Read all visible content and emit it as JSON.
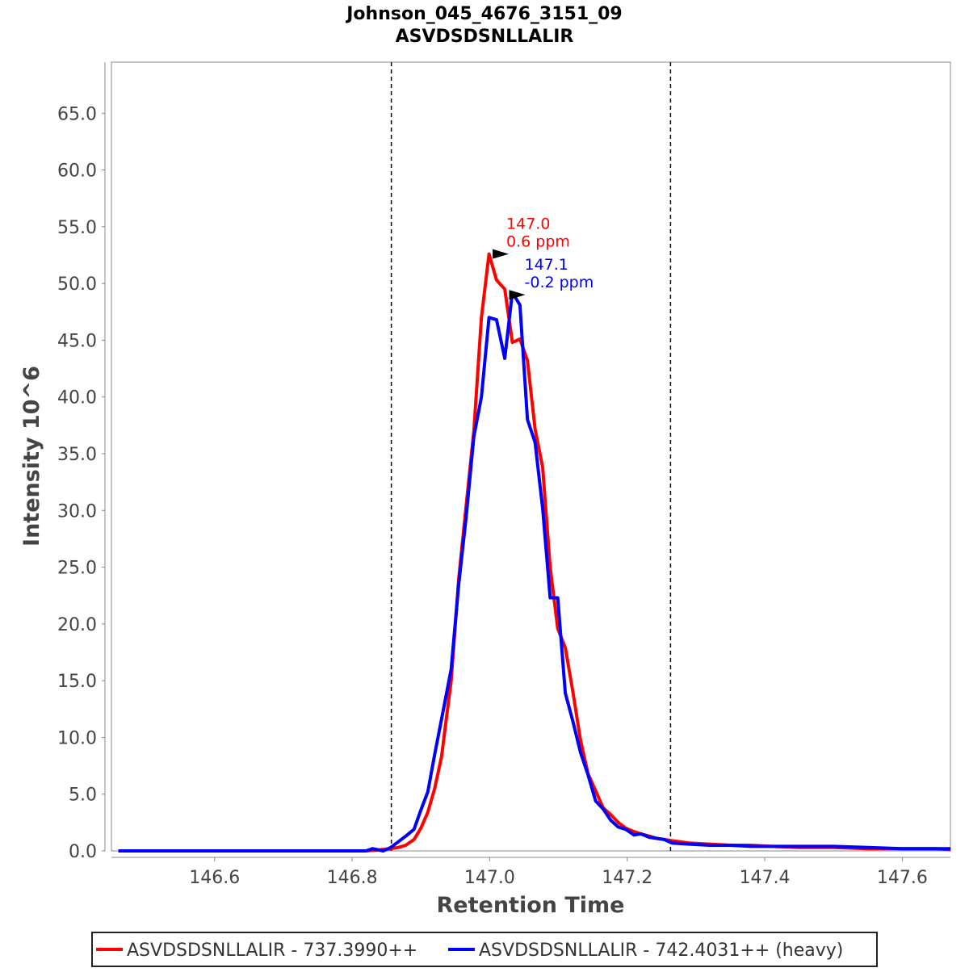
{
  "chart_data": {
    "type": "line",
    "title": "Johnson_045_4676_3151_09",
    "subtitle": "ASVDSDSNLLALIR",
    "xlabel": "Retention Time",
    "ylabel": "Intensity 10^6",
    "xlim": [
      146.45,
      147.67
    ],
    "ylim": [
      0,
      69.5
    ],
    "x_ticks": [
      "146.6",
      "146.8",
      "147.0",
      "147.2",
      "147.4",
      "147.6"
    ],
    "x_tick_values": [
      146.6,
      146.8,
      147.0,
      147.2,
      147.4,
      147.6
    ],
    "y_ticks": [
      "0.0",
      "5.0",
      "10.0",
      "15.0",
      "20.0",
      "25.0",
      "30.0",
      "35.0",
      "40.0",
      "45.0",
      "50.0",
      "55.0",
      "60.0",
      "65.0"
    ],
    "y_tick_values": [
      0,
      5,
      10,
      15,
      20,
      25,
      30,
      35,
      40,
      45,
      50,
      55,
      60,
      65
    ],
    "boundaries": [
      146.857,
      147.263
    ],
    "grid": false,
    "legend_position": "bottom",
    "series": [
      {
        "name": "ASVDSDSNLLALIR - 737.3990++",
        "color": "#ff0000",
        "x": [
          146.46,
          146.5,
          146.55,
          146.6,
          146.65,
          146.7,
          146.75,
          146.8,
          146.82,
          146.84,
          146.856,
          146.867,
          146.878,
          146.89,
          146.9,
          146.91,
          146.92,
          146.93,
          146.944,
          146.955,
          146.966,
          146.977,
          146.988,
          146.999,
          147.01,
          147.022,
          147.033,
          147.044,
          147.055,
          147.066,
          147.077,
          147.088,
          147.099,
          147.11,
          147.121,
          147.132,
          147.143,
          147.154,
          147.165,
          147.176,
          147.187,
          147.198,
          147.21,
          147.22,
          147.232,
          147.243,
          147.254,
          147.265,
          147.29,
          147.32,
          147.35,
          147.38,
          147.41,
          147.45,
          147.5,
          147.55,
          147.6,
          147.65,
          147.67
        ],
        "y": [
          0.0,
          0.0,
          0.0,
          0.0,
          0.0,
          0.0,
          0.0,
          0.0,
          0.0,
          0.1,
          0.2,
          0.3,
          0.5,
          1.0,
          2.0,
          3.4,
          5.5,
          8.3,
          15.0,
          24.0,
          30.5,
          37.0,
          47.0,
          52.6,
          50.3,
          49.5,
          44.8,
          45.1,
          43.2,
          37.2,
          33.8,
          25.0,
          19.6,
          17.9,
          14.0,
          9.8,
          6.8,
          5.3,
          3.8,
          3.2,
          2.5,
          2.0,
          1.7,
          1.5,
          1.3,
          1.1,
          1.0,
          0.9,
          0.7,
          0.6,
          0.5,
          0.5,
          0.4,
          0.3,
          0.3,
          0.2,
          0.2,
          0.2,
          0.1
        ]
      },
      {
        "name": "ASVDSDSNLLALIR - 742.4031++ (heavy)",
        "color": "#0000ff",
        "x": [
          146.46,
          146.5,
          146.55,
          146.6,
          146.65,
          146.7,
          146.75,
          146.8,
          146.82,
          146.83,
          146.845,
          146.856,
          146.867,
          146.878,
          146.89,
          146.9,
          146.91,
          146.92,
          146.93,
          146.944,
          146.955,
          146.966,
          146.977,
          146.988,
          146.999,
          147.01,
          147.022,
          147.033,
          147.044,
          147.055,
          147.066,
          147.077,
          147.088,
          147.099,
          147.11,
          147.121,
          147.132,
          147.143,
          147.154,
          147.165,
          147.176,
          147.187,
          147.198,
          147.21,
          147.22,
          147.232,
          147.243,
          147.254,
          147.265,
          147.29,
          147.32,
          147.35,
          147.38,
          147.41,
          147.45,
          147.5,
          147.55,
          147.6,
          147.65,
          147.67
        ],
        "y": [
          0.0,
          0.0,
          0.0,
          0.0,
          0.0,
          0.0,
          0.0,
          0.0,
          0.0,
          0.2,
          0.0,
          0.3,
          0.8,
          1.3,
          1.9,
          3.6,
          5.2,
          8.5,
          11.6,
          16.0,
          23.5,
          29.5,
          36.5,
          40.0,
          47.0,
          46.8,
          43.4,
          49.2,
          48.1,
          38.0,
          36.0,
          30.2,
          22.3,
          22.3,
          13.9,
          11.4,
          8.7,
          6.7,
          4.4,
          3.7,
          2.7,
          2.1,
          1.9,
          1.4,
          1.5,
          1.2,
          1.1,
          1.0,
          0.7,
          0.6,
          0.5,
          0.5,
          0.4,
          0.4,
          0.4,
          0.4,
          0.3,
          0.2,
          0.2,
          0.2
        ]
      }
    ],
    "annotations": [
      {
        "series": 0,
        "x": 147.036,
        "y": 52.6,
        "lines": [
          "147.0",
          "0.6 ppm"
        ],
        "color": "#ff0000"
      },
      {
        "series": 1,
        "x": 147.06,
        "y": 49.0,
        "lines": [
          "147.1",
          "-0.2 ppm"
        ],
        "color": "#0000ff"
      }
    ]
  }
}
